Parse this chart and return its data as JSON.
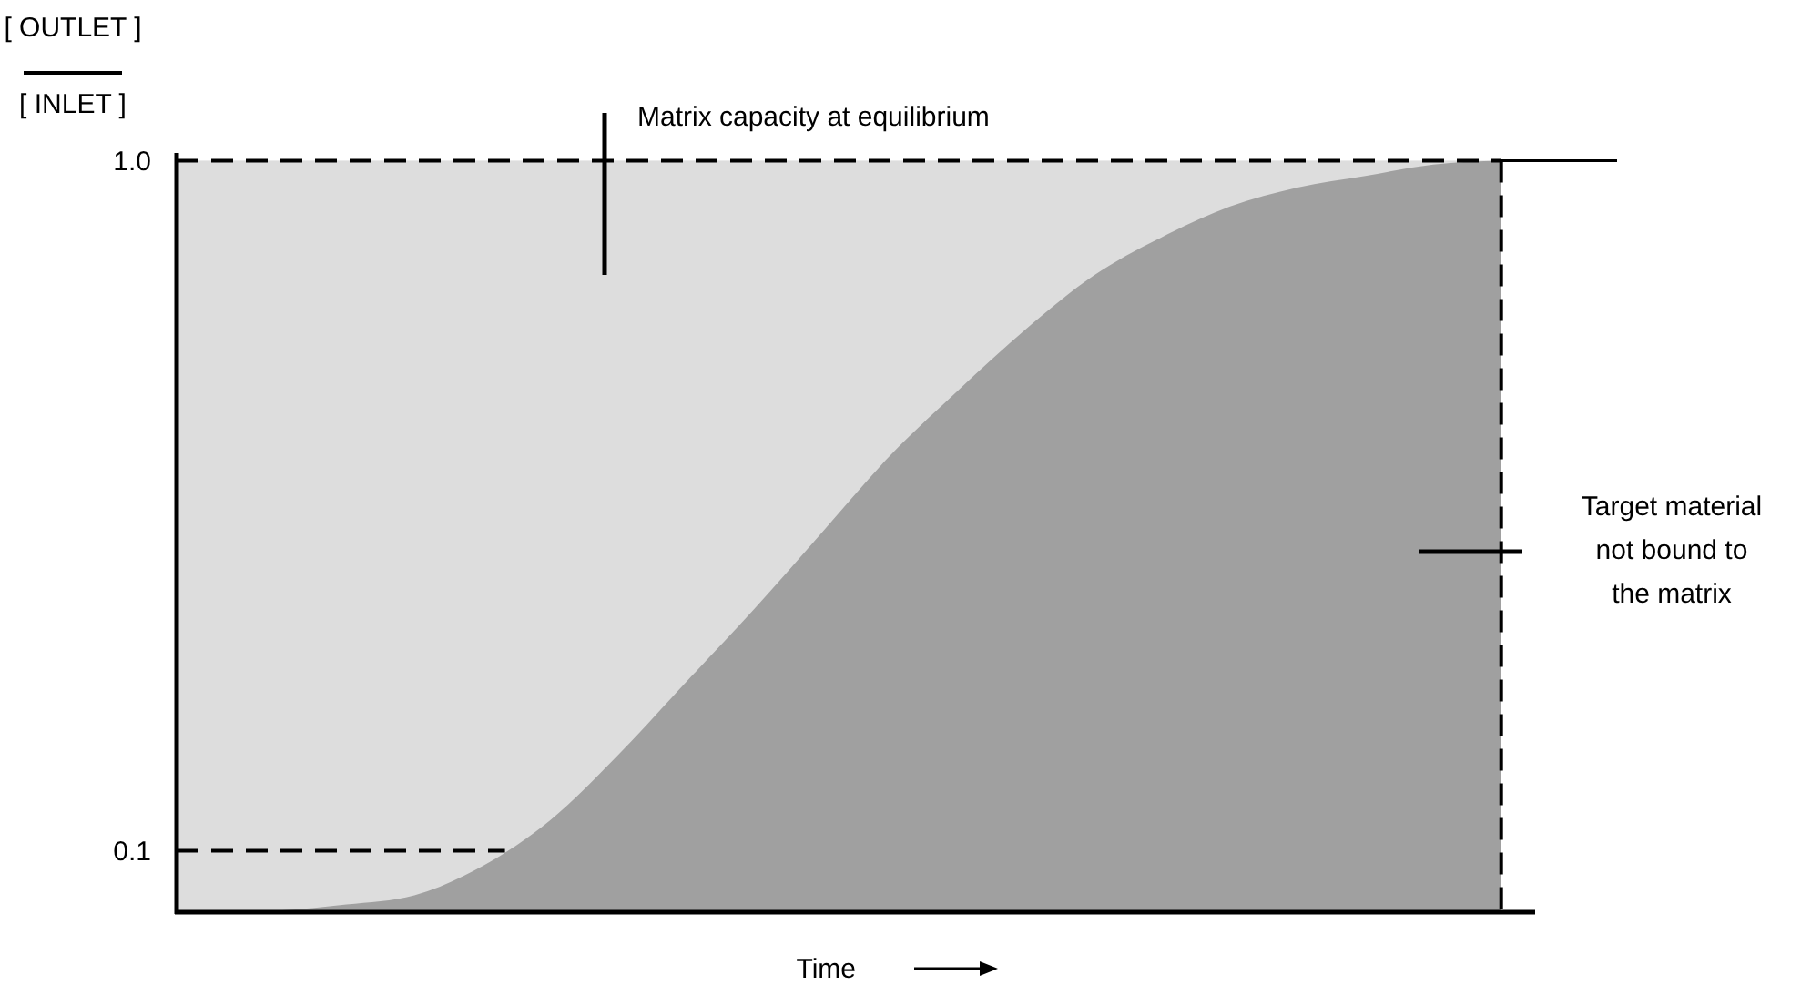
{
  "chart_data": {
    "type": "area",
    "ylabel": "[ OUTLET ]\n[ INLET ]",
    "xlabel": "Time",
    "categories": [
      null,
      null,
      null,
      null,
      null,
      null,
      null,
      null,
      null,
      null,
      null,
      null,
      null,
      null,
      null,
      null,
      null,
      null,
      null,
      null
    ],
    "series": [
      {
        "color": "#a0a0a0",
        "values": [
          0.02,
          0.022,
          0.03,
          0.042,
          0.08,
          0.14,
          0.225,
          0.32,
          0.415,
          0.515,
          0.615,
          0.7,
          0.78,
          0.85,
          0.9,
          0.94,
          0.965,
          0.98,
          0.995,
          1.0
        ]
      }
    ],
    "ylim": [
      0.02,
      1.01
    ],
    "yticks": [
      {
        "value": 0.1,
        "label": "0.1"
      },
      {
        "value": 1,
        "label": "1.0"
      }
    ],
    "ref_lines": [
      {
        "axis": "y",
        "value": 1,
        "line_style": "dashed"
      },
      {
        "axis": "y",
        "value": 0.1,
        "line_style": "dashed"
      }
    ],
    "annotations": [
      "Matrix capacity at equilibrium",
      "Target material\nnot bound to\nthe matrix"
    ],
    "bands": [
      {
        "axis": "y",
        "from": 0.02,
        "to": 1,
        "color": "#dddddd"
      }
    ],
    "grid": false
  }
}
